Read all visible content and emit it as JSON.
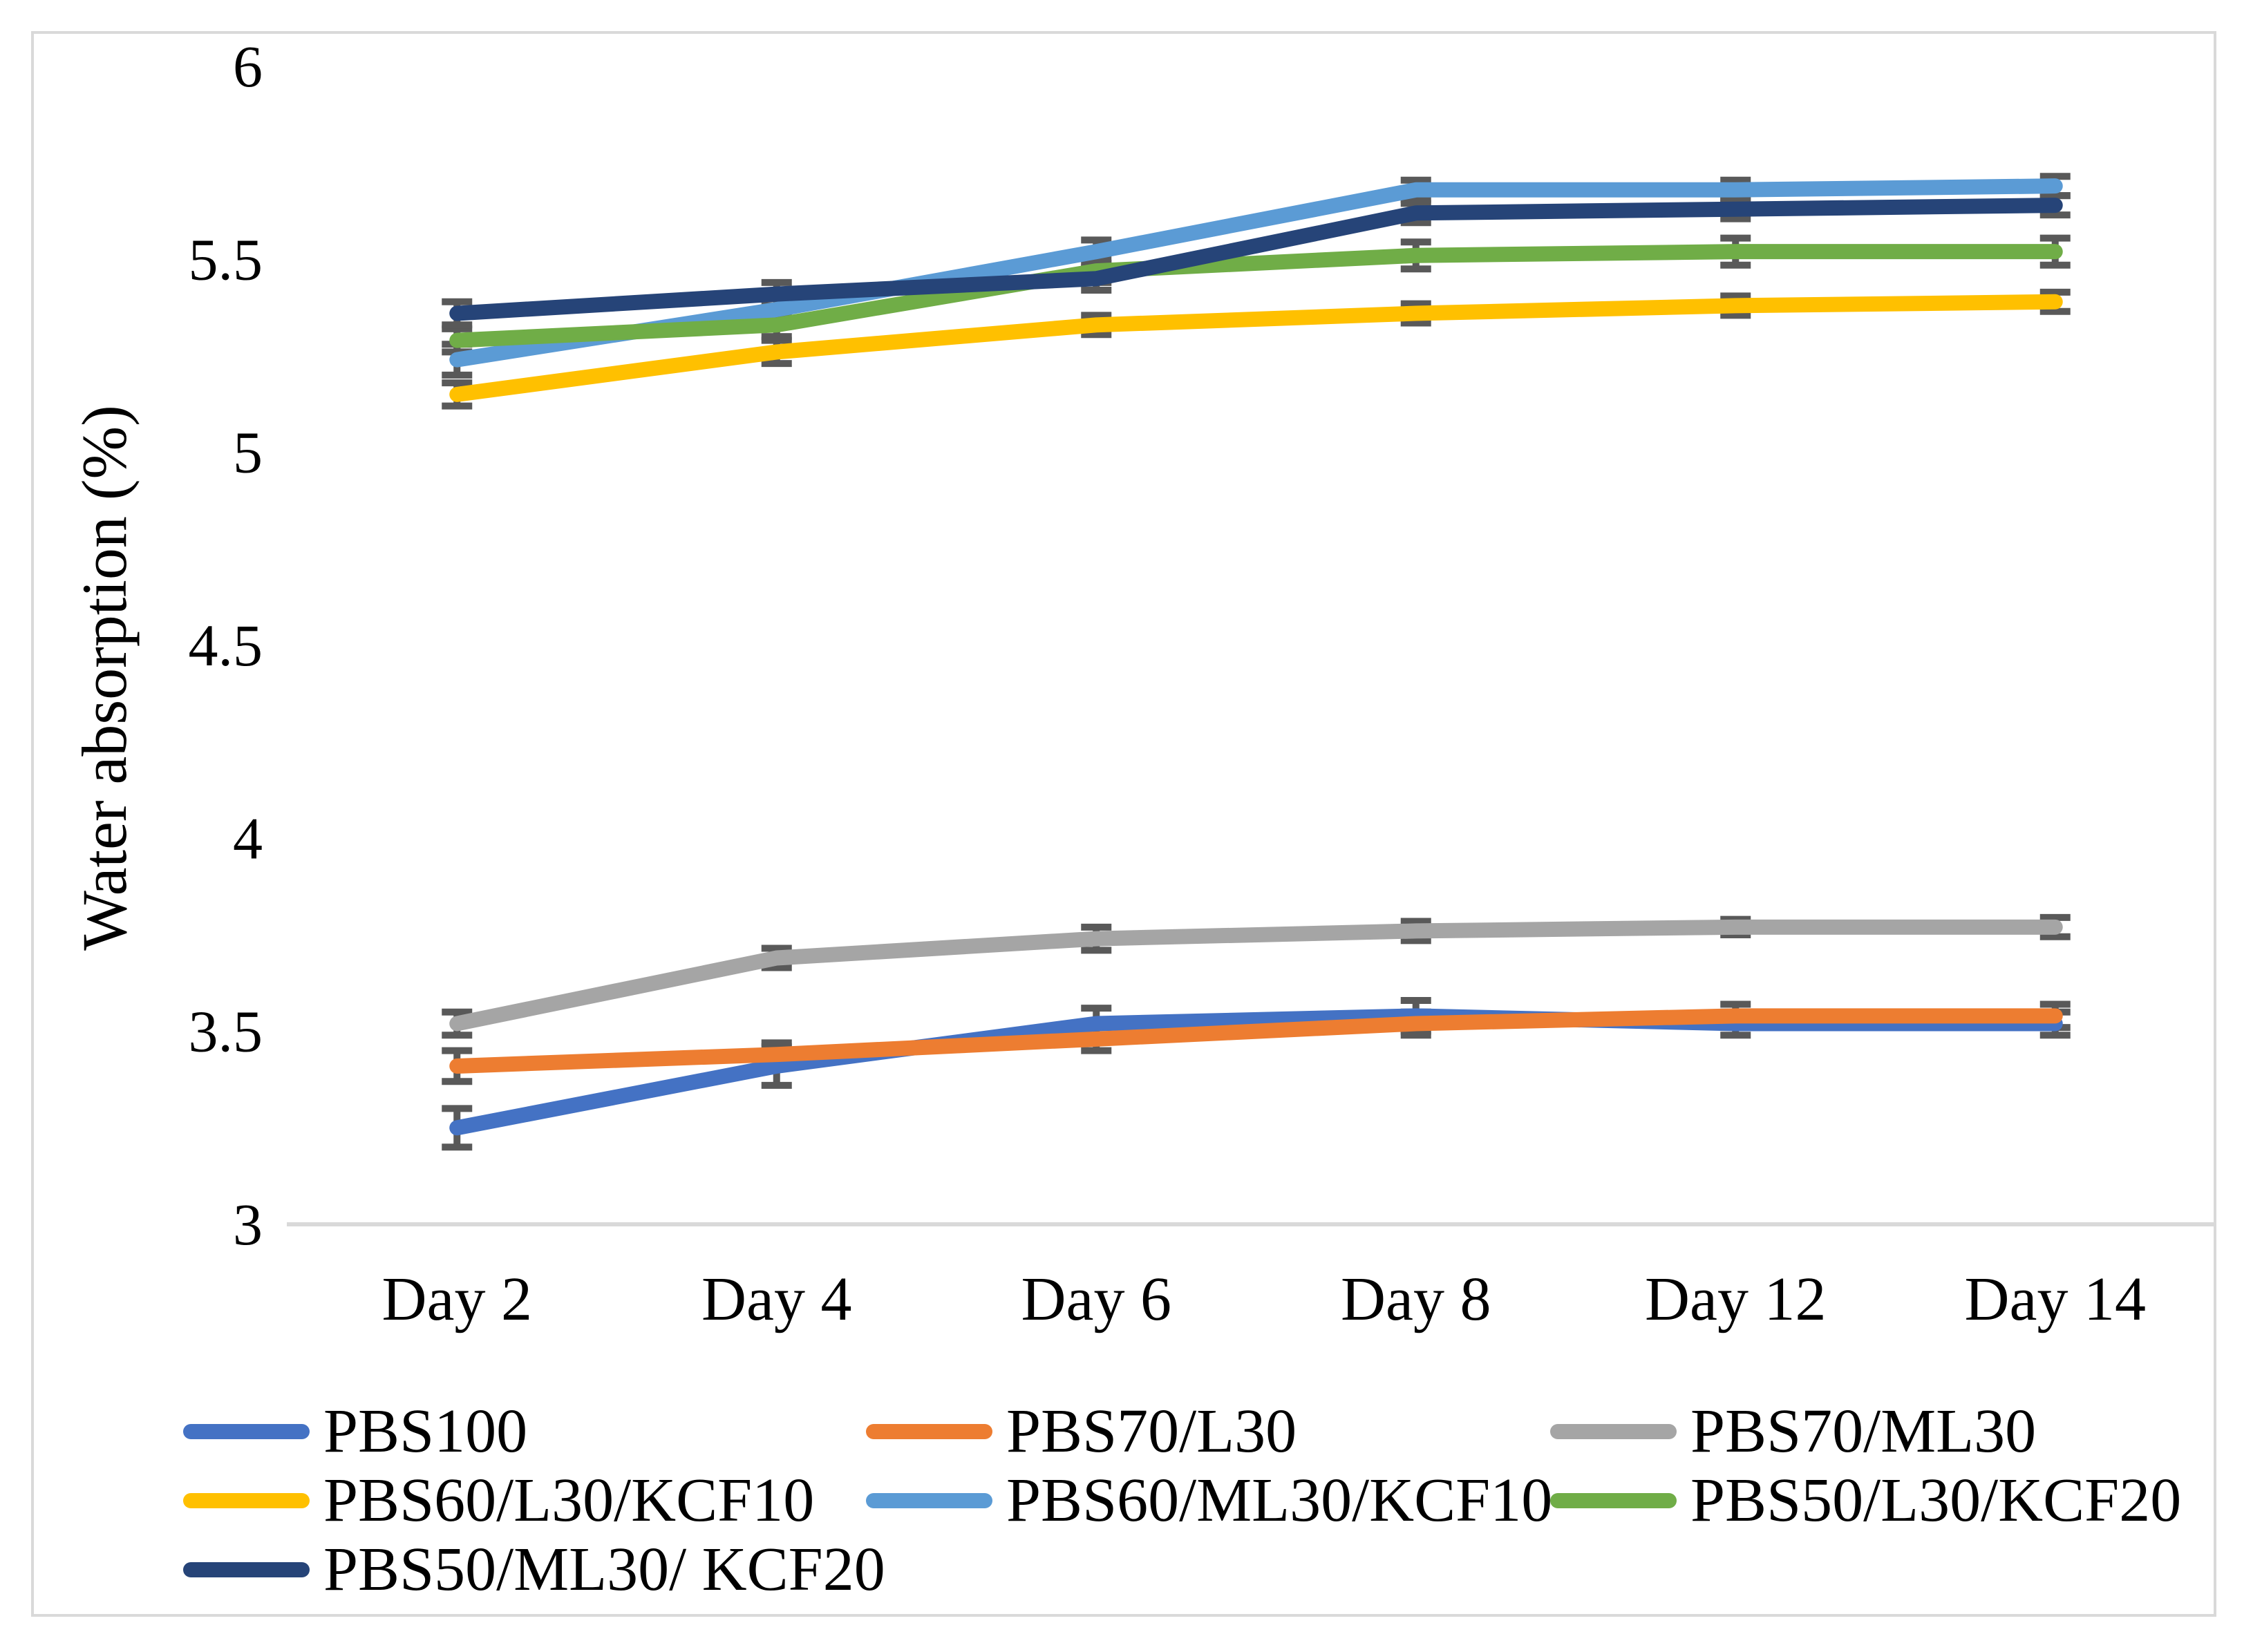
{
  "chart_data": {
    "type": "line",
    "title": "",
    "xlabel": "",
    "ylabel": "Water absorption (%)",
    "categories": [
      "Day 2",
      "Day 4",
      "Day 6",
      "Day 8",
      "Day 12",
      "Day 14"
    ],
    "ylim": [
      3,
      6
    ],
    "yticks": [
      3,
      3.5,
      4,
      4.5,
      5,
      5.5,
      6
    ],
    "ytick_labels": [
      "3",
      "3.5",
      "4",
      "4.5",
      "5",
      "5.5",
      "6"
    ],
    "grid": false,
    "legend_position": "bottom",
    "axis_color": "#d9d9d9",
    "error_bar_color": "#595959",
    "series": [
      {
        "name": "PBS100",
        "color": "#4472c4",
        "values": [
          3.25,
          3.41,
          3.52,
          3.54,
          3.52,
          3.52
        ],
        "errors": [
          0.05,
          0.05,
          0.04,
          0.04,
          0.03,
          0.03
        ]
      },
      {
        "name": "PBS70/L30",
        "color": "#ed7d31",
        "values": [
          3.41,
          3.44,
          3.48,
          3.52,
          3.54,
          3.54
        ],
        "errors": [
          0.04,
          0.03,
          0.03,
          0.03,
          0.03,
          0.03
        ]
      },
      {
        "name": "PBS70/ML30",
        "color": "#a5a5a5",
        "values": [
          3.52,
          3.69,
          3.74,
          3.76,
          3.77,
          3.77
        ],
        "errors": [
          0.03,
          0.025,
          0.03,
          0.025,
          0.02,
          0.025
        ]
      },
      {
        "name": "PBS60/L30/KCF10",
        "color": "#ffc000",
        "values": [
          5.15,
          5.26,
          5.33,
          5.36,
          5.38,
          5.39
        ],
        "errors": [
          0.03,
          0.03,
          0.025,
          0.025,
          0.025,
          0.025
        ]
      },
      {
        "name": "PBS60/ML30/KCF10",
        "color": "#5b9bd5",
        "values": [
          5.24,
          5.37,
          5.52,
          5.68,
          5.68,
          5.69
        ],
        "errors": [
          0.04,
          0.03,
          0.03,
          0.025,
          0.025,
          0.025
        ]
      },
      {
        "name": "PBS50/L30/KCF20",
        "color": "#70ad47",
        "values": [
          5.29,
          5.33,
          5.47,
          5.51,
          5.52,
          5.52
        ],
        "errors": [
          0.03,
          0.03,
          0.03,
          0.035,
          0.035,
          0.035
        ]
      },
      {
        "name": "PBS50/ML30/ KCF20",
        "color": "#264478",
        "values": [
          5.36,
          5.41,
          5.45,
          5.62,
          5.63,
          5.64
        ],
        "errors": [
          0.03,
          0.03,
          0.03,
          0.025,
          0.025,
          0.025
        ]
      }
    ]
  }
}
